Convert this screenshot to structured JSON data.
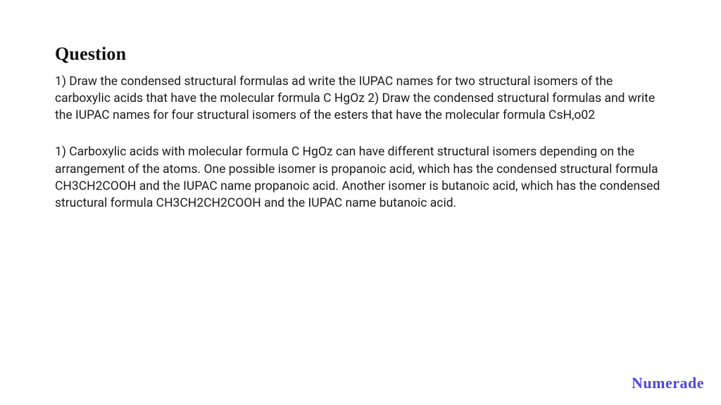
{
  "page": {
    "background_color": "#ffffff",
    "text_color": "#1a1a1a",
    "brand_color": "#4f46e5"
  },
  "heading": {
    "text": "Question",
    "font_family": "serif",
    "font_size_pt": 20,
    "font_weight": 700
  },
  "paragraphs": {
    "p1": "1) Draw the condensed structural formulas ad write the IUPAC names for two structural isomers of the carboxylic acids that have the molecular formula C HgOz 2) Draw the condensed structural formulas and write the IUPAC names for four structural isomers of the esters that have the molecular formula CsH,o02",
    "p2": "1) Carboxylic acids with molecular formula C HgOz can have different structural isomers depending on the arrangement of the atoms. One possible isomer is propanoic acid, which has the condensed structural formula CH3CH2COOH and the IUPAC name propanoic acid. Another isomer is butanoic acid, which has the condensed structural formula CH3CH2CH2COOH and the IUPAC name butanoic acid.",
    "font_size_pt": 13,
    "line_height": 1.38
  },
  "brand": {
    "text": "Numerade",
    "font_family": "cursive",
    "font_size_pt": 17,
    "color": "#4f46e5"
  }
}
